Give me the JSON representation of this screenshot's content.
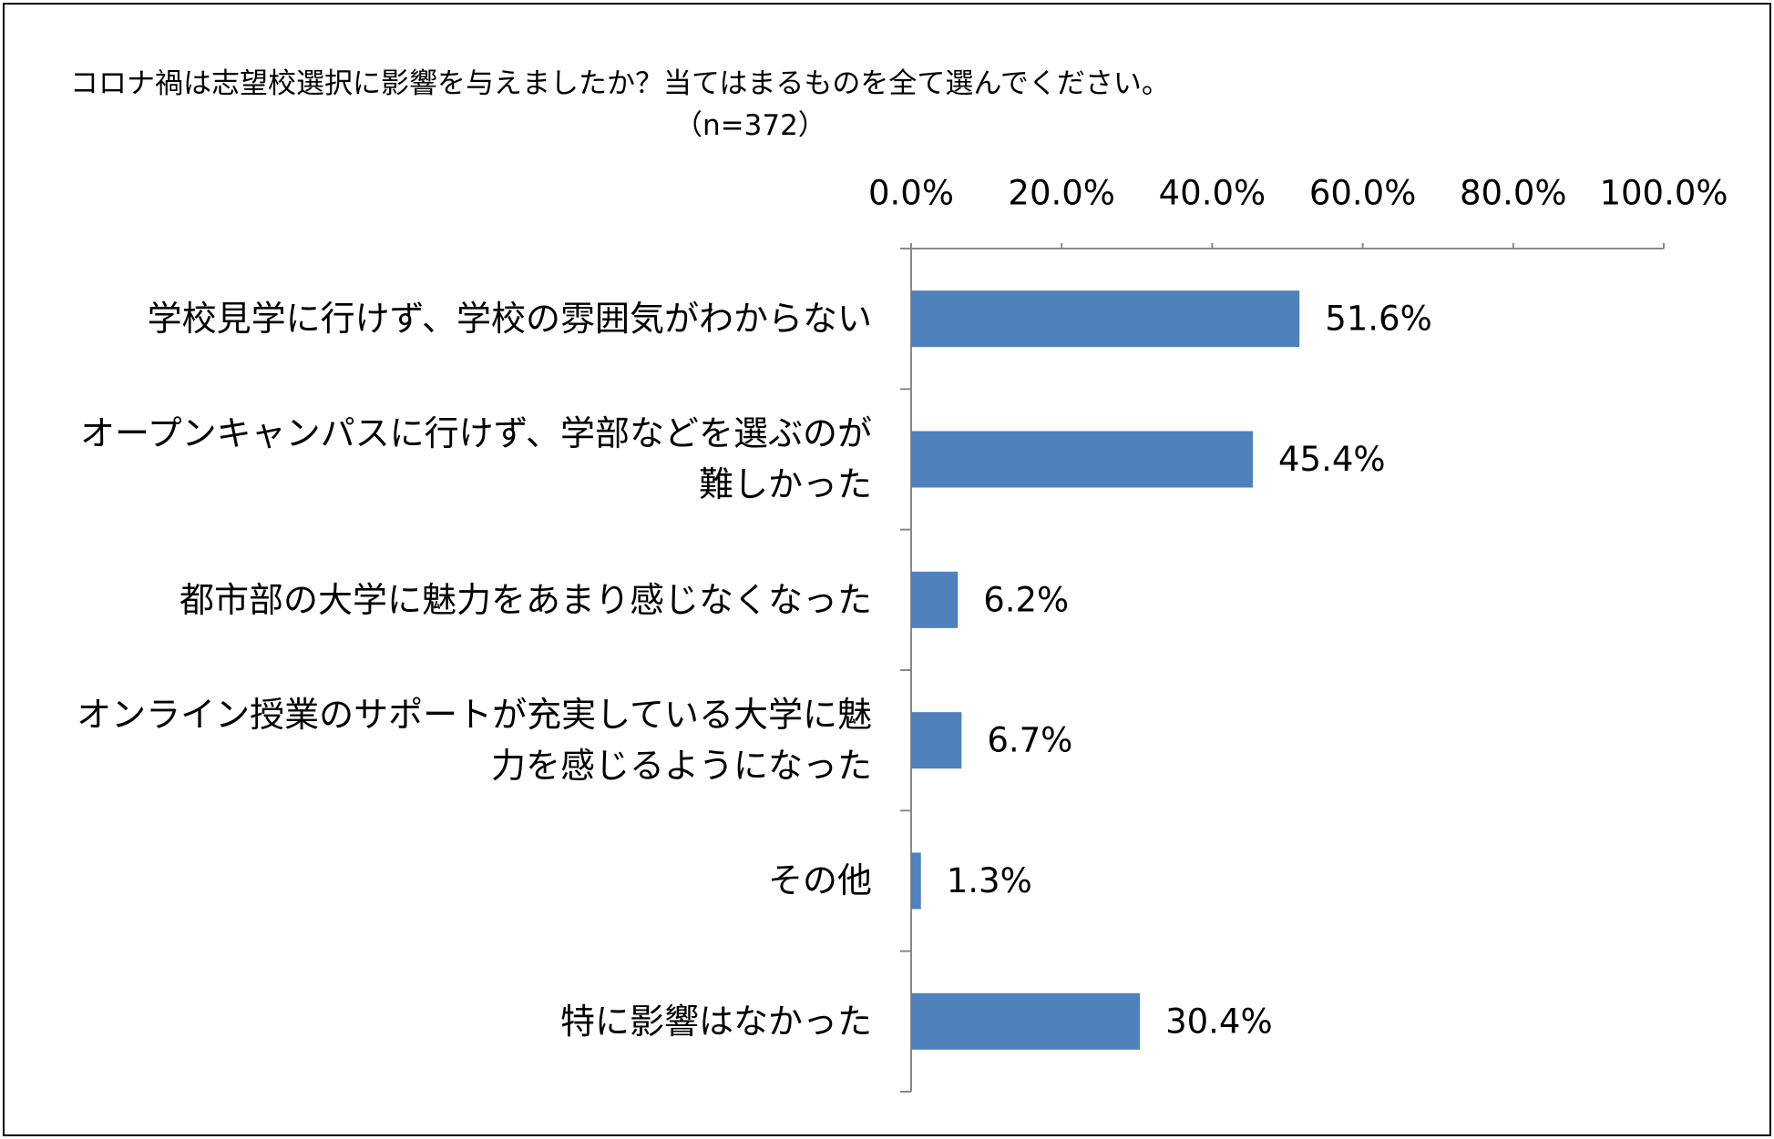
{
  "chart_data": {
    "type": "bar",
    "orientation": "horizontal",
    "title": "コロナ禍は志望校選択に影響を与えましたか？当てはまるものを全て選んでください。",
    "subtitle": "（n=372）",
    "categories": [
      "学校見学に行けず、学校の雰囲気がわからない",
      "オープンキャンパスに行けず、学部などを選ぶのが難しかった",
      "都市部の大学に魅力をあまり感じなくなった",
      "オンライン授業のサポートが充実している大学に魅力を感じるようになった",
      "その他",
      "特に影響はなかった"
    ],
    "values": [
      51.6,
      45.4,
      6.2,
      6.7,
      1.3,
      30.4
    ],
    "value_labels": [
      "51.6%",
      "45.4%",
      "6.2%",
      "6.7%",
      "1.3%",
      "30.4%"
    ],
    "color": "#4f81bd",
    "xlim": [
      0,
      100
    ],
    "xticks": [
      {
        "value": 0,
        "label": "0.0%"
      },
      {
        "value": 20,
        "label": "20.0%"
      },
      {
        "value": 40,
        "label": "40.0%"
      },
      {
        "value": 60,
        "label": "60.0%"
      },
      {
        "value": 80,
        "label": "80.0%"
      },
      {
        "value": 100,
        "label": "100.0%"
      }
    ],
    "grid": false
  }
}
